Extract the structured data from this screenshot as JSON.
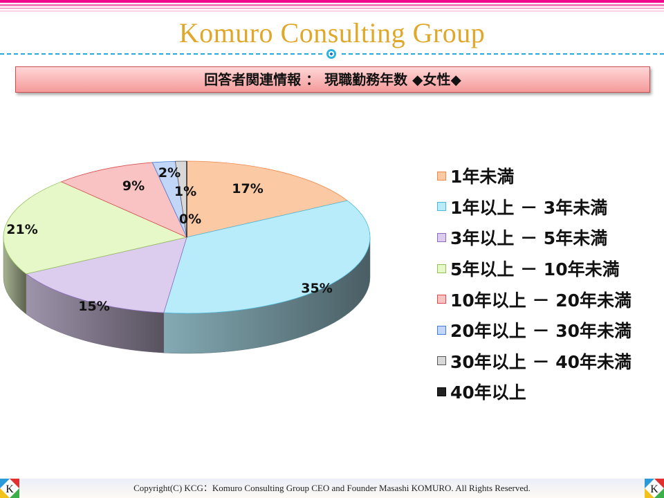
{
  "header": {
    "title": "Komuro Consulting Group",
    "stripe_colors": [
      "#f0078c",
      "#f47ab8",
      "#f7a2cc",
      "#fbd0e4"
    ],
    "accent_gold": "#e0a82a",
    "divider_color": "#29a9d8"
  },
  "banner": {
    "text": "回答者関連情報 ： 現職勤務年数 ◆女性◆"
  },
  "chart_data": {
    "type": "pie",
    "style": "3d",
    "title": "回答者関連情報 ： 現職勤務年数 ◆女性◆",
    "categories": [
      "1年未満",
      "1年以上 － 3年未満",
      "3年以上 － 5年未満",
      "5年以上 － 10年未満",
      "10年以上 － 20年未満",
      "20年以上 － 30年未満",
      "30年以上 － 40年未満",
      "40年以上"
    ],
    "values": [
      17,
      35,
      15,
      21,
      9,
      2,
      1,
      0
    ],
    "labels": [
      "17%",
      "35%",
      "15%",
      "21%",
      "9%",
      "2%",
      "1%",
      "0%"
    ],
    "colors": [
      "#fbc9a3",
      "#b8ecfa",
      "#dccdee",
      "#e6f7c8",
      "#f9c3c3",
      "#c2d6f7",
      "#d8d8d8",
      "#222222"
    ],
    "border_colors": [
      "#f0874a",
      "#4ab8dc",
      "#8c6cc0",
      "#93c05a",
      "#d94a4a",
      "#4a7ad8",
      "#555555",
      "#000000"
    ],
    "legend_position": "right",
    "start_angle": "top, clockwise"
  },
  "legend": {
    "items": [
      {
        "label": "1年未満"
      },
      {
        "label": "1年以上 － 3年未満"
      },
      {
        "label": "3年以上 － 5年未満"
      },
      {
        "label": "5年以上 － 10年未満"
      },
      {
        "label": "10年以上 － 20年未満"
      },
      {
        "label": "20年以上 － 30年未満"
      },
      {
        "label": "30年以上 － 40年未満"
      },
      {
        "label": "40年以上"
      }
    ]
  },
  "footer": {
    "copyright": "Copyright(C)  KCG：Komuro Consulting Group   CEO and Founder   Masashi KOMURO. All Rights Reserved.",
    "logo_letter": "K"
  }
}
